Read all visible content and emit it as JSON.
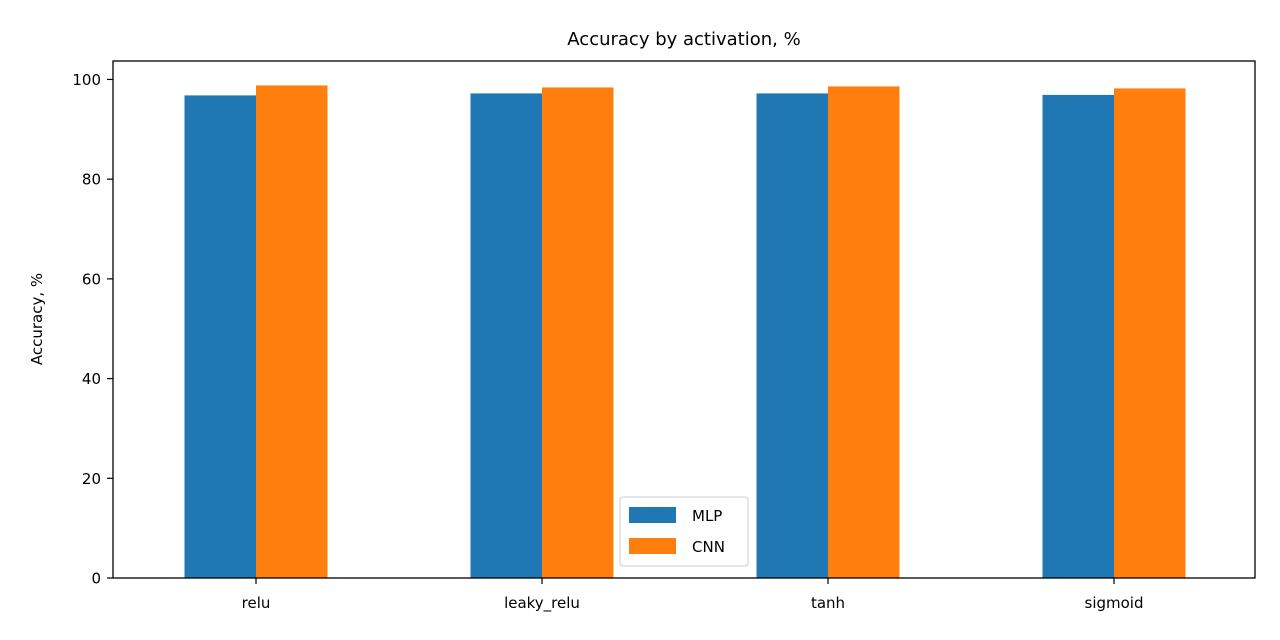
{
  "chart_data": {
    "type": "bar",
    "title": "Accuracy by activation, %",
    "xlabel": "",
    "ylabel": "Accuracy, %",
    "categories": [
      "relu",
      "leaky_relu",
      "tanh",
      "sigmoid"
    ],
    "series": [
      {
        "name": "MLP",
        "color": "#1f77b4",
        "values": [
          96.8,
          97.2,
          97.2,
          96.9
        ]
      },
      {
        "name": "CNN",
        "color": "#ff7f0e",
        "values": [
          98.8,
          98.4,
          98.6,
          98.2
        ]
      }
    ],
    "ylim": [
      0,
      103.7
    ],
    "yticks": [
      0,
      20,
      40,
      60,
      80,
      100
    ],
    "grid": false,
    "legend_position": "bottom-center"
  }
}
